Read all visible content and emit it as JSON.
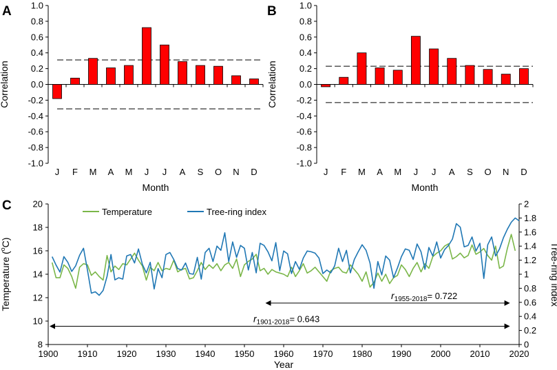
{
  "chart_data": [
    {
      "panel": "A",
      "type": "bar",
      "ylabel": "Correlation",
      "xlabel": "Month",
      "ylim": [
        -1.0,
        1.0
      ],
      "yticks": [
        "1.0",
        "0.8",
        "0.6",
        "0.4",
        "0.2",
        "0.0",
        "-0.2",
        "-0.4",
        "-0.6",
        "-0.8",
        "-1.0"
      ],
      "categories": [
        "J",
        "F",
        "M",
        "A",
        "M",
        "J",
        "J",
        "A",
        "S",
        "O",
        "N",
        "D"
      ],
      "values": [
        -0.18,
        0.08,
        0.33,
        0.21,
        0.24,
        0.72,
        0.5,
        0.29,
        0.24,
        0.23,
        0.11,
        0.07
      ],
      "significance_levels": [
        0.31,
        -0.31
      ],
      "bar_color": "#ff0000"
    },
    {
      "panel": "B",
      "type": "bar",
      "ylabel": "Correlation",
      "xlabel": "Month",
      "ylim": [
        -1.0,
        1.0
      ],
      "yticks": [
        "1.0",
        "0.8",
        "0.6",
        "0.4",
        "0.2",
        "0.0",
        "-0.2",
        "-0.4",
        "-0.6",
        "-0.8",
        "-1.0"
      ],
      "categories": [
        "J",
        "F",
        "M",
        "A",
        "M",
        "J",
        "J",
        "A",
        "S",
        "O",
        "N",
        "D"
      ],
      "values": [
        -0.03,
        0.09,
        0.4,
        0.21,
        0.18,
        0.61,
        0.45,
        0.33,
        0.24,
        0.19,
        0.13,
        0.2
      ],
      "significance_levels": [
        0.23,
        -0.23
      ],
      "bar_color": "#ff0000"
    },
    {
      "panel": "C",
      "type": "line",
      "xlabel": "Year",
      "ylabel_left_prefix": "Temperature (",
      "ylabel_left_sup": "o",
      "ylabel_left_suffix": "C)",
      "ylabel_right": "Tree-ring index",
      "xlim": [
        1900,
        2020
      ],
      "ylim_left": [
        8,
        20
      ],
      "ylim_right": [
        0,
        2
      ],
      "xticks": [
        "1900",
        "1910",
        "1920",
        "1930",
        "1940",
        "1950",
        "1960",
        "1970",
        "1980",
        "1990",
        "2000",
        "2010",
        "2020"
      ],
      "yticks_left": [
        "20",
        "18",
        "16",
        "14",
        "12",
        "10",
        "8"
      ],
      "yticks_right": [
        "2",
        "1.8",
        "1.6",
        "1.4",
        "1.2",
        "1",
        "0.8",
        "0.6",
        "0.4",
        "0.2",
        "0"
      ],
      "x_start": 1901,
      "series": [
        {
          "name": "Temperature",
          "axis": "left",
          "color": "#7ab648",
          "values": [
            15.0,
            13.7,
            13.7,
            14.8,
            14.5,
            13.8,
            12.8,
            14.6,
            14.9,
            14.8,
            13.9,
            14.2,
            13.8,
            13.5,
            15.6,
            14.2,
            14.7,
            14.4,
            14.9,
            14.8,
            15.3,
            15.8,
            15.2,
            14.7,
            13.5,
            14.6,
            14.3,
            15.0,
            14.3,
            14.5,
            14.4,
            15.2,
            14.2,
            14.4,
            14.5,
            13.6,
            13.7,
            14.3,
            15.0,
            14.4,
            14.8,
            14.5,
            14.9,
            14.3,
            14.8,
            15.0,
            14.5,
            15.3,
            13.8,
            14.8,
            15.1,
            15.3,
            15.7,
            14.3,
            14.5,
            14.0,
            14.4,
            14.2,
            14.1,
            14.0,
            13.8,
            14.6,
            13.8,
            14.3,
            14.9,
            14.1,
            14.3,
            14.6,
            14.2,
            13.8,
            13.4,
            14.3,
            14.5,
            14.6,
            14.2,
            14.1,
            14.8,
            14.4,
            14.0,
            13.4,
            14.2,
            12.9,
            13.3,
            14.1,
            13.4,
            14.0,
            13.2,
            13.7,
            13.9,
            14.8,
            14.4,
            13.8,
            14.5,
            15.0,
            14.2,
            14.9,
            14.5,
            15.5,
            15.8,
            16.0,
            16.4,
            16.6,
            15.3,
            15.5,
            15.8,
            15.4,
            15.6,
            16.5,
            15.7,
            15.9,
            16.2,
            15.6,
            15.2,
            16.4,
            14.5,
            14.7,
            16.2,
            17.4,
            16.0
          ]
        },
        {
          "name": "Tree-ring index",
          "axis": "right",
          "color": "#1f77b4",
          "values": [
            1.25,
            1.13,
            1.03,
            1.25,
            1.17,
            1.04,
            1.12,
            1.27,
            1.37,
            1.06,
            0.73,
            0.75,
            0.7,
            0.77,
            0.97,
            1.28,
            0.92,
            0.95,
            0.93,
            1.26,
            1.28,
            1.16,
            1.36,
            1.14,
            1.02,
            1.17,
            0.79,
            1.08,
            0.95,
            1.28,
            1.31,
            1.21,
            1.08,
            1.06,
            1.16,
            1.01,
            1.0,
            1.24,
            0.93,
            1.31,
            1.37,
            1.18,
            1.4,
            1.34,
            1.59,
            1.18,
            1.46,
            1.24,
            1.41,
            1.37,
            1.06,
            1.31,
            1.02,
            1.44,
            1.41,
            1.32,
            1.19,
            1.45,
            1.05,
            1.33,
            1.29,
            1.01,
            1.18,
            1.07,
            1.23,
            1.33,
            1.32,
            1.3,
            1.23,
            1.01,
            1.06,
            1.02,
            1.12,
            1.37,
            1.18,
            1.34,
            1.02,
            1.21,
            1.32,
            1.42,
            1.34,
            1.16,
            0.8,
            1.18,
            0.99,
            1.26,
            1.2,
            0.95,
            1.09,
            1.25,
            1.36,
            1.34,
            1.21,
            1.43,
            1.32,
            1.07,
            1.38,
            1.26,
            1.46,
            1.23,
            1.35,
            1.41,
            1.5,
            1.72,
            1.67,
            1.39,
            1.41,
            1.53,
            1.33,
            1.44,
            0.94,
            1.42,
            1.53,
            1.26,
            1.36,
            1.52,
            1.64,
            1.74,
            1.8,
            1.76
          ]
        }
      ],
      "annotations": [
        {
          "label_r": "r",
          "label_sub": "1955-2018",
          "label_rest": "= 0.722",
          "from": 1955,
          "to": 2018,
          "y": 0.59
        },
        {
          "label_r": "r",
          "label_sub": "1901-2018",
          "label_rest": "= 0.643",
          "from": 1900,
          "to": 2018,
          "y": 0.26
        }
      ]
    }
  ]
}
